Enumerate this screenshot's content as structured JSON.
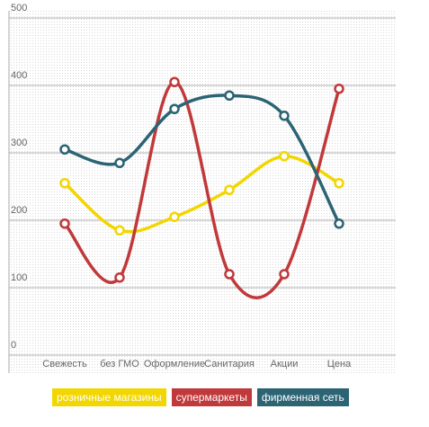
{
  "chart_data": {
    "type": "line",
    "categories": [
      "Свежесть",
      "без ГМО",
      "Оформление",
      "Санитария",
      "Акции",
      "Цена"
    ],
    "series": [
      {
        "name": "розничные магазины",
        "color": "#f2d600",
        "values": [
          255,
          185,
          205,
          245,
          295,
          255
        ]
      },
      {
        "name": "супермаркеты",
        "color": "#c0393b",
        "values": [
          195,
          115,
          405,
          120,
          120,
          395
        ]
      },
      {
        "name": "фирменная сеть",
        "color": "#2c6474",
        "values": [
          305,
          285,
          365,
          385,
          355,
          195
        ]
      }
    ],
    "ylim": [
      0,
      500
    ],
    "yticks": [
      0,
      100,
      200,
      300,
      400,
      500
    ],
    "grid": true,
    "smooth": true,
    "legend": "bottom"
  }
}
